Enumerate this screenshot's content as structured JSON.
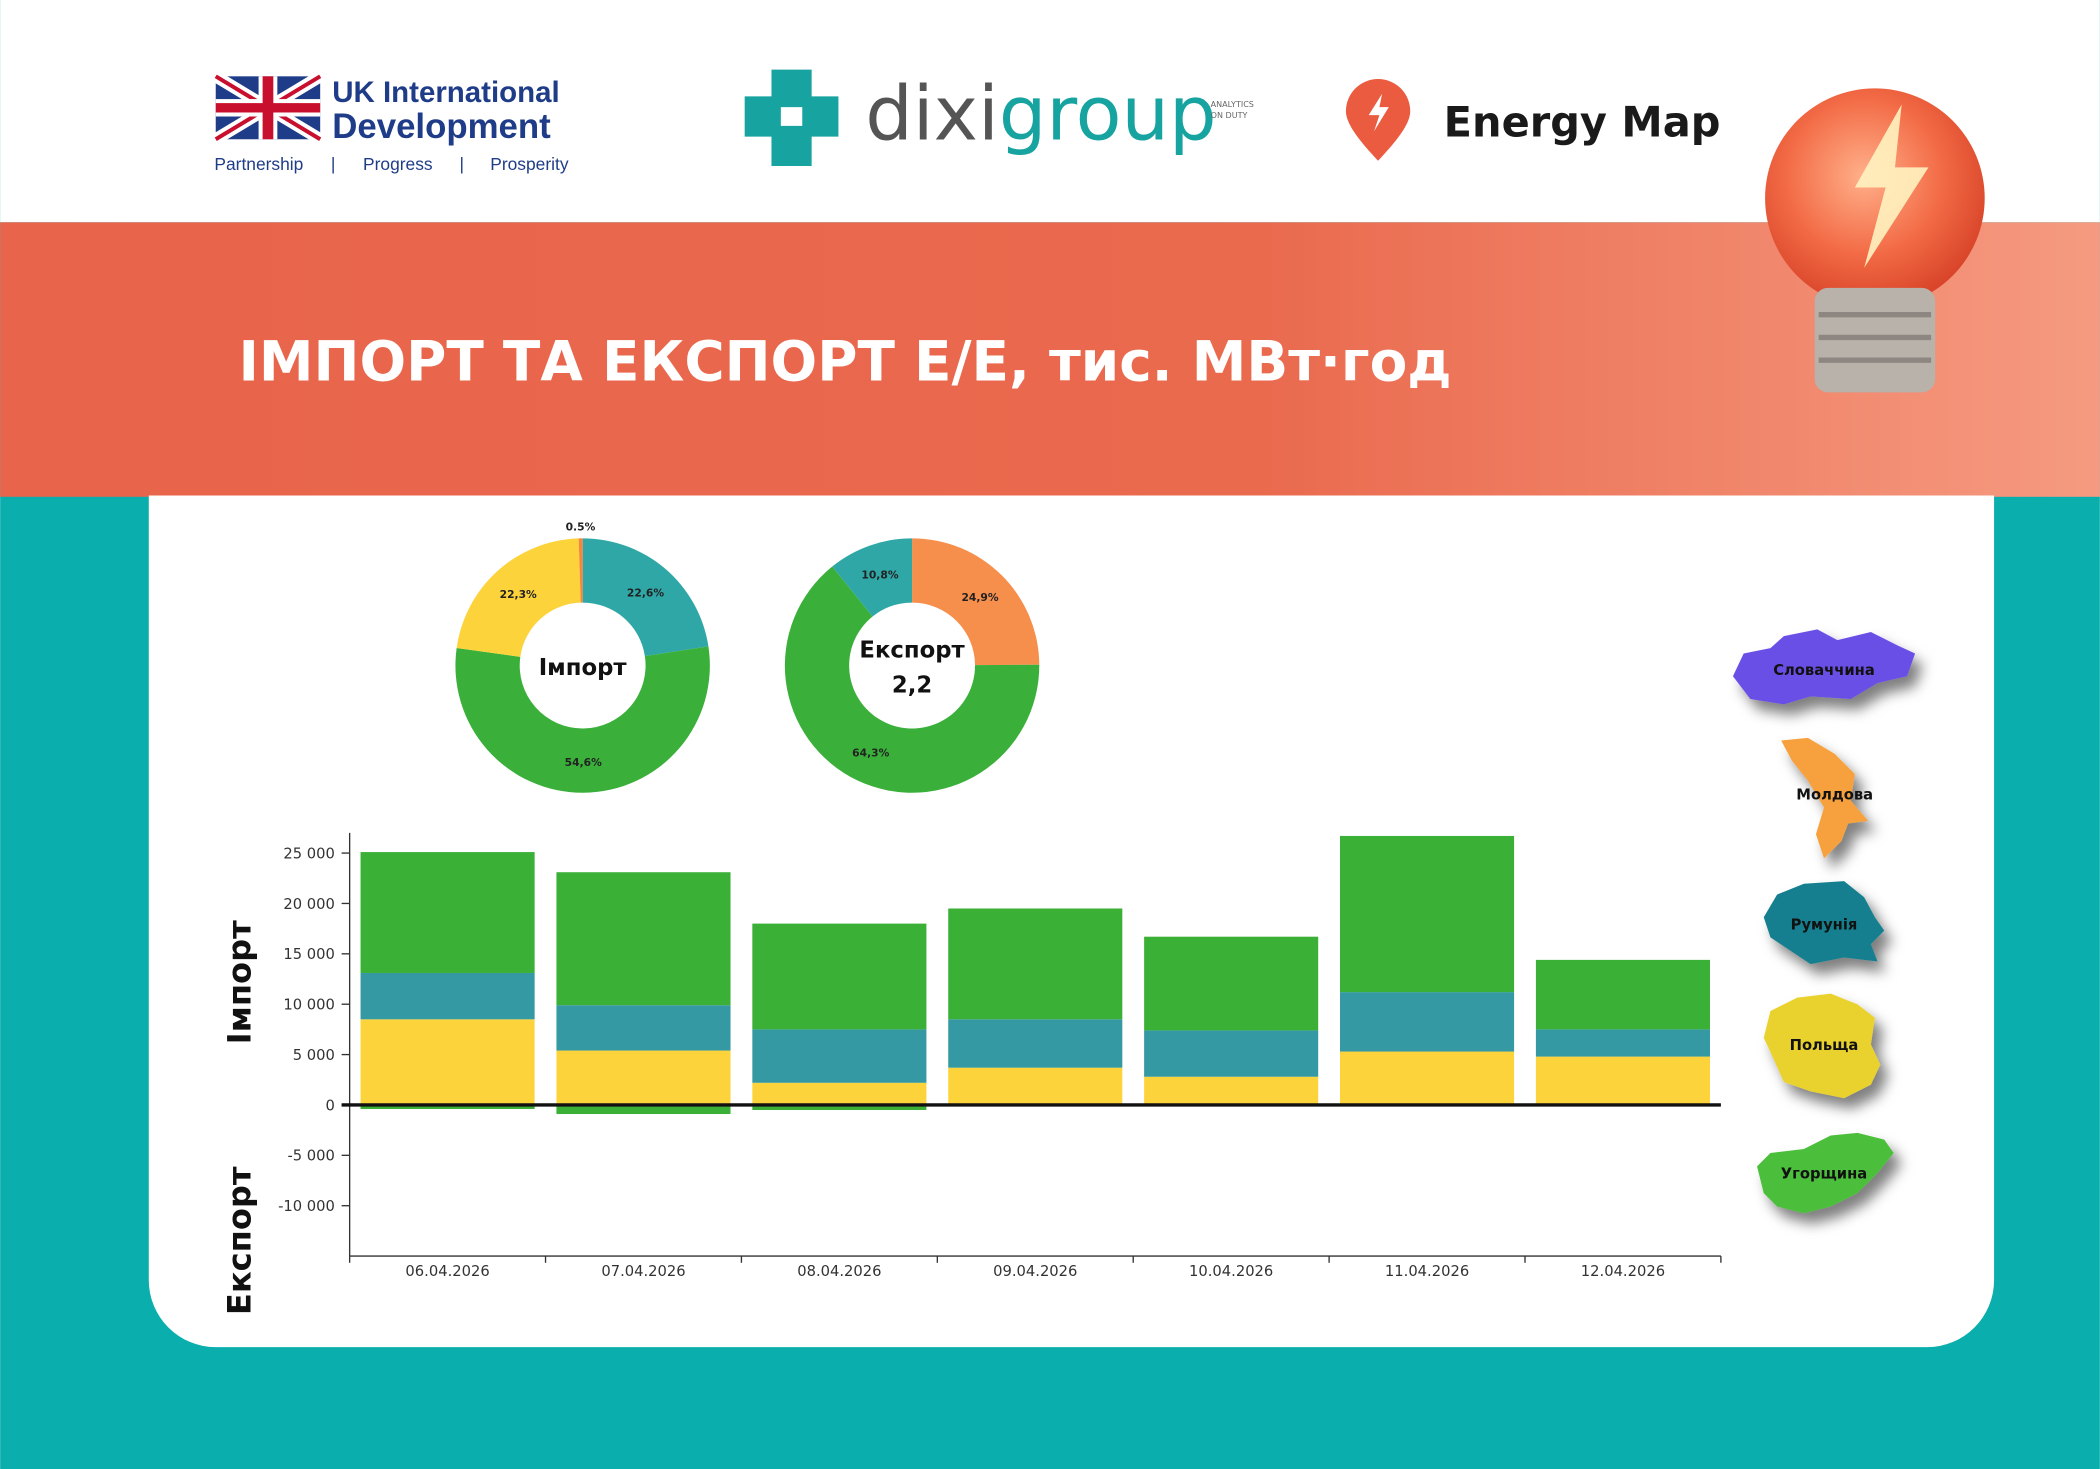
{
  "header": {
    "uk_line1": "UK International",
    "uk_line2": "Development",
    "uk_tagline": [
      "Partnership",
      "|",
      "Progress",
      "|",
      "Prosperity"
    ],
    "dixi_part1": "dixi",
    "dixi_part2": "group",
    "dixi_tag": [
      "ANALYTICS",
      "ON DUTY"
    ],
    "energy_map": "Energy Map",
    "title": "ІМПОРТ ТА ЕКСПОРТ Е/Е, тис. МВт·год"
  },
  "countries": [
    {
      "name": "Словаччина",
      "color": "#6a50e6"
    },
    {
      "name": "Молдова",
      "color": "#f6a13c"
    },
    {
      "name": "Румунія",
      "color": "#177f8f"
    },
    {
      "name": "Польща",
      "color": "#e9d22f"
    },
    {
      "name": "Угорщина",
      "color": "#4cbe3a"
    }
  ],
  "chart_data": [
    {
      "type": "pie",
      "center_text": [
        "Імпорт"
      ],
      "values": [
        22.6,
        54.6,
        22.3,
        0.5
      ],
      "value_labels": [
        "22,6%",
        "54,6%",
        "22,3%",
        "0.5%"
      ],
      "colors": [
        "#2fa7a7",
        "#3ab03a",
        "#fdd33b",
        "#f5853f"
      ]
    },
    {
      "type": "pie",
      "center_text": [
        "Експорт",
        "2,2"
      ],
      "values": [
        24.9,
        64.3,
        10.8
      ],
      "value_labels": [
        "24,9%",
        "64,3%",
        "10,8%"
      ],
      "colors": [
        "#f68f4c",
        "#3ab03a",
        "#2fa7a7"
      ]
    },
    {
      "type": "bar",
      "axis_labels": [
        "Імпорт",
        "Експорт"
      ],
      "categories": [
        "06.04.2026",
        "07.04.2026",
        "08.04.2026",
        "09.04.2026",
        "10.04.2026",
        "11.04.2026",
        "12.04.2026"
      ],
      "series": [
        {
          "color": "#fdd33b",
          "values": [
            8500,
            5400,
            2200,
            3700,
            2800,
            5300,
            4800
          ]
        },
        {
          "color": "#3599a3",
          "values": [
            4600,
            4500,
            5300,
            4800,
            4600,
            5900,
            2700
          ]
        },
        {
          "color": "#3ab036",
          "values": [
            12000,
            13200,
            10500,
            11000,
            9300,
            15500,
            6900
          ]
        },
        {
          "color": "#3ab036",
          "values": [
            -400,
            -900,
            -500,
            0,
            0,
            0,
            0
          ]
        }
      ],
      "ylim": [
        -15000,
        27000
      ],
      "yticks": [
        {
          "value": 25000,
          "label": "25 000"
        },
        {
          "value": 20000,
          "label": "20 000"
        },
        {
          "value": 15000,
          "label": "15 000"
        },
        {
          "value": 10000,
          "label": "10 000"
        },
        {
          "value": 5000,
          "label": "5 000"
        },
        0,
        {
          "value": -5000,
          "label": "-5 000"
        },
        {
          "value": -10000,
          "label": "-10 000"
        }
      ],
      "stacked": true
    }
  ]
}
